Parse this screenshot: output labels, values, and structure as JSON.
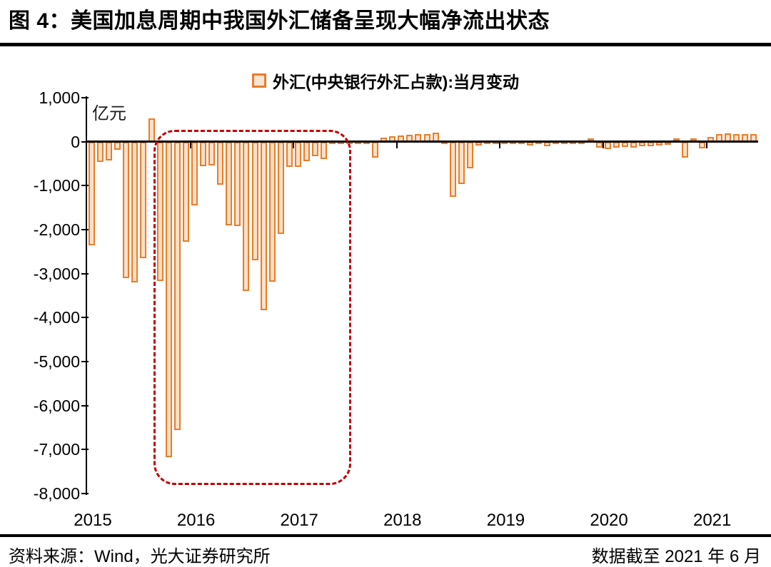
{
  "page": {
    "title": "图 4：美国加息周期中我国外汇储备呈现大幅净流出状态"
  },
  "legend": {
    "label": "外汇(中央银行外汇占款):当月变动"
  },
  "axis_unit_label": "亿元",
  "footer": {
    "source": "资料来源：Wind，光大证券研究所",
    "data_cutoff": "数据截至 2021 年 6 月"
  },
  "colors": {
    "bar_border": "#E87D2B",
    "bar_fill": "#FBE0C7",
    "legend_fill": "#FBE5D6",
    "highlight_box": "#C00000",
    "axis": "#000000"
  },
  "chart_data": {
    "type": "bar",
    "title": "外汇(中央银行外汇占款):当月变动",
    "unit": "亿元",
    "ylim": [
      -8000,
      1000
    ],
    "ytick_step": 1000,
    "y_tick_labels": [
      "1,000",
      "0",
      "-1,000",
      "-2,000",
      "-3,000",
      "-4,000",
      "-5,000",
      "-6,000",
      "-7,000",
      "-8,000"
    ],
    "xtick_years": [
      "2015",
      "2016",
      "2017",
      "2018",
      "2019",
      "2020",
      "2021"
    ],
    "grid": false,
    "legend_position": "top-center",
    "highlight_box": {
      "style": "dashed-rounded-rect",
      "color": "#C00000",
      "x_from": "2015-09",
      "x_to": "2017-06",
      "y_top": 270,
      "y_bottom": -7700
    },
    "months": [
      "2015-01",
      "2015-02",
      "2015-03",
      "2015-04",
      "2015-05",
      "2015-06",
      "2015-07",
      "2015-08",
      "2015-09",
      "2015-10",
      "2015-11",
      "2015-12",
      "2016-01",
      "2016-02",
      "2016-03",
      "2016-04",
      "2016-05",
      "2016-06",
      "2016-07",
      "2016-08",
      "2016-09",
      "2016-10",
      "2016-11",
      "2016-12",
      "2017-01",
      "2017-02",
      "2017-03",
      "2017-04",
      "2017-05",
      "2017-06",
      "2017-07",
      "2017-08",
      "2017-09",
      "2017-10",
      "2017-11",
      "2017-12",
      "2018-01",
      "2018-02",
      "2018-03",
      "2018-04",
      "2018-05",
      "2018-06",
      "2018-07",
      "2018-08",
      "2018-09",
      "2018-10",
      "2018-11",
      "2018-12",
      "2019-01",
      "2019-02",
      "2019-03",
      "2019-04",
      "2019-05",
      "2019-06",
      "2019-07",
      "2019-08",
      "2019-09",
      "2019-10",
      "2019-11",
      "2019-12",
      "2020-01",
      "2020-02",
      "2020-03",
      "2020-04",
      "2020-05",
      "2020-06",
      "2020-07",
      "2020-08",
      "2020-09",
      "2020-10",
      "2020-11",
      "2020-12",
      "2021-01",
      "2021-02",
      "2021-03",
      "2021-04",
      "2021-05",
      "2021-06"
    ],
    "values": [
      -2350,
      -460,
      -430,
      -190,
      -3100,
      -3200,
      -2650,
      530,
      -3160,
      -7180,
      -6560,
      -2280,
      -1450,
      -560,
      -535,
      -975,
      -1905,
      -1920,
      -3400,
      -2700,
      -3825,
      -3180,
      -2090,
      -580,
      -580,
      -445,
      -325,
      -400,
      -45,
      -40,
      -35,
      -30,
      -45,
      -370,
      100,
      120,
      140,
      155,
      180,
      165,
      210,
      -60,
      -1260,
      -965,
      -610,
      -90,
      -40,
      -35,
      -30,
      -25,
      -35,
      -90,
      -45,
      -110,
      -40,
      -30,
      -25,
      -20,
      80,
      -135,
      -165,
      -140,
      -125,
      -130,
      -105,
      -100,
      -90,
      -70,
      80,
      -370,
      70,
      -150,
      110,
      165,
      185,
      175,
      170,
      180
    ]
  }
}
